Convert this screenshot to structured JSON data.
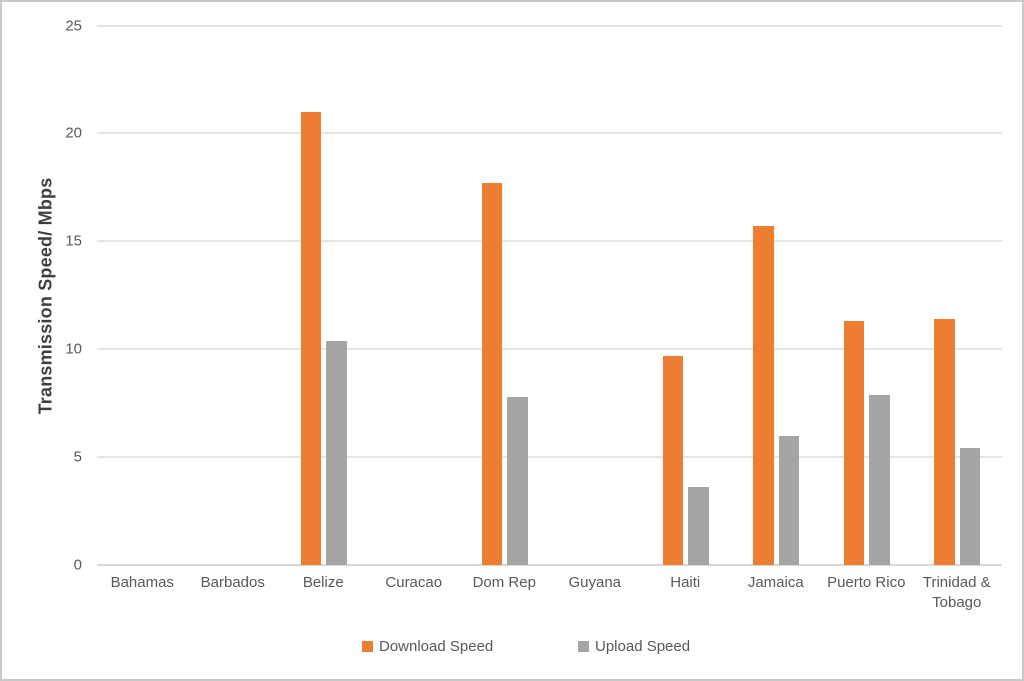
{
  "chart_data": {
    "type": "bar",
    "title": "",
    "xlabel": "",
    "ylabel": "Transmission Speed/ Mbps",
    "ylim": [
      0,
      25
    ],
    "yticks": [
      0,
      5,
      10,
      15,
      20,
      25
    ],
    "grid": true,
    "legend_position": "bottom",
    "categories": [
      "Bahamas",
      "Barbados",
      "Belize",
      "Curacao",
      "Dom Rep",
      "Guyana",
      "Haiti",
      "Jamaica",
      "Puerto Rico",
      "Trinidad & Tobago"
    ],
    "series": [
      {
        "name": "Download Speed",
        "color": "#ED7D31",
        "values": [
          0,
          0,
          21.0,
          0,
          17.7,
          0,
          9.7,
          15.7,
          11.3,
          11.4
        ]
      },
      {
        "name": "Upload Speed",
        "color": "#A5A5A5",
        "values": [
          0,
          0,
          10.4,
          0,
          7.8,
          0,
          3.6,
          6.0,
          7.9,
          5.4
        ]
      }
    ]
  },
  "colors": {
    "download_accent": "#ED7D31",
    "upload_accent": "#A5A5A5",
    "gridline": "#e4e4e4",
    "axis_line": "#d8d8d8",
    "tick_text": "#595959",
    "axis_title_text": "#3f3f3f",
    "frame_border": "#c9c9c9"
  }
}
